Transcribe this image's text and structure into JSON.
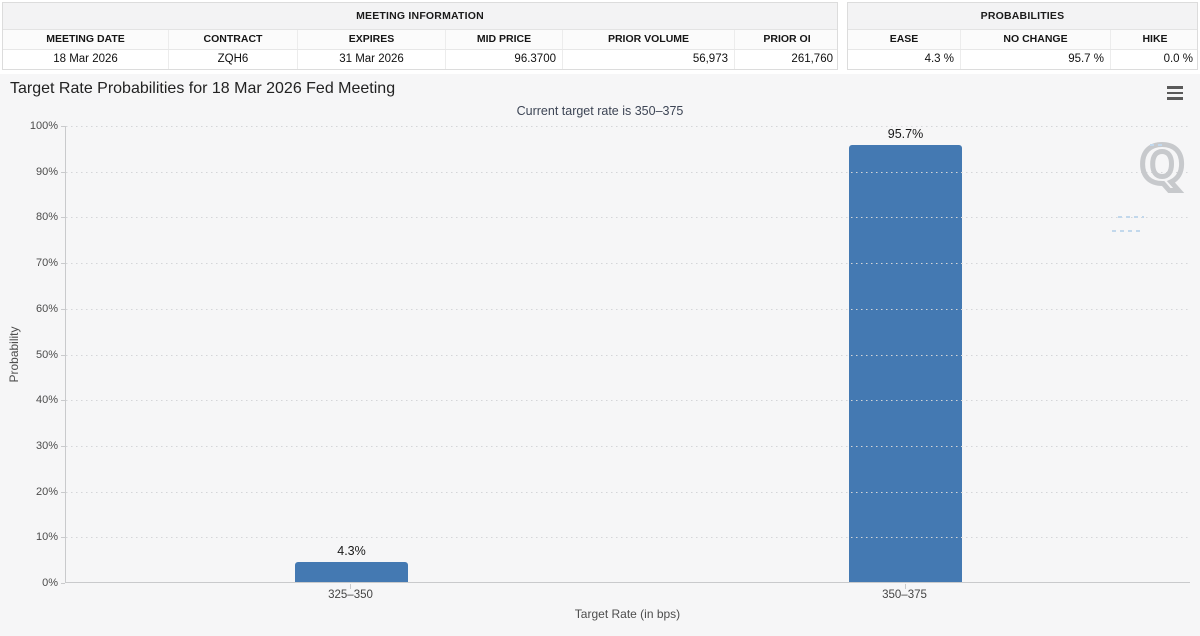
{
  "meeting_information": {
    "title": "MEETING INFORMATION",
    "columns": [
      "MEETING DATE",
      "CONTRACT",
      "EXPIRES",
      "MID PRICE",
      "PRIOR VOLUME",
      "PRIOR OI"
    ],
    "values": [
      "18 Mar 2026",
      "ZQH6",
      "31 Mar 2026",
      "96.3700",
      "56,973",
      "261,760"
    ]
  },
  "probabilities_summary": {
    "title": "PROBABILITIES",
    "columns": [
      "EASE",
      "NO CHANGE",
      "HIKE"
    ],
    "values": [
      "4.3 %",
      "95.7 %",
      "0.0 %"
    ]
  },
  "chart": {
    "title": "Target Rate Probabilities for 18 Mar 2026 Fed Meeting",
    "subtitle": "Current target rate is 350–375",
    "menu_icon": "hamburger-menu",
    "watermark_letter": "Q"
  },
  "chart_data": {
    "type": "bar",
    "title": "Target Rate Probabilities for 18 Mar 2026 Fed Meeting",
    "subtitle": "Current target rate is 350–375",
    "categories": [
      "325–350",
      "350–375"
    ],
    "values": [
      4.3,
      95.7
    ],
    "bar_labels": [
      "4.3%",
      "95.7%"
    ],
    "xlabel": "Target Rate (in bps)",
    "ylabel": "Probability",
    "ylim": [
      0,
      100
    ],
    "yticks": [
      "0%",
      "10%",
      "20%",
      "30%",
      "40%",
      "50%",
      "60%",
      "70%",
      "80%",
      "90%",
      "100%"
    ],
    "grid": "dotted-horizontal",
    "legend": "none",
    "bar_color": "#4479b2"
  }
}
